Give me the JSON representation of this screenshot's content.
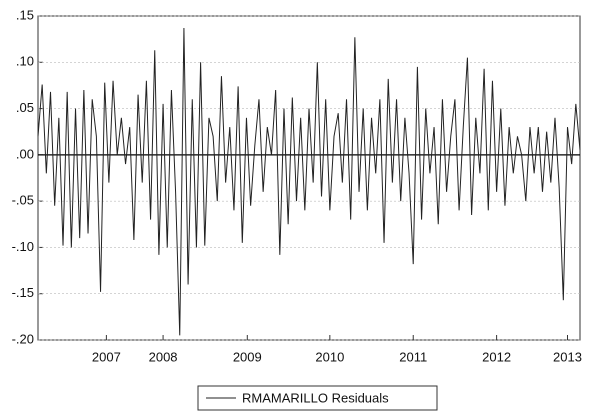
{
  "chart_data": {
    "type": "line",
    "x": [
      2006.55,
      2006.6,
      2006.65,
      2006.7,
      2006.75,
      2006.8,
      2006.85,
      2006.9,
      2006.95,
      2007.0,
      2007.05,
      2007.1,
      2007.15,
      2007.2,
      2007.25,
      2007.3,
      2007.35,
      2007.4,
      2007.45,
      2007.5,
      2007.55,
      2007.6,
      2007.65,
      2007.7,
      2007.75,
      2007.8,
      2007.85,
      2007.9,
      2007.95,
      2008.0,
      2008.05,
      2008.1,
      2008.15,
      2008.2,
      2008.25,
      2008.3,
      2008.35,
      2008.4,
      2008.45,
      2008.5,
      2008.55,
      2008.6,
      2008.65,
      2008.7,
      2008.75,
      2008.8,
      2008.85,
      2008.9,
      2008.95,
      2009.0,
      2009.05,
      2009.1,
      2009.15,
      2009.2,
      2009.25,
      2009.3,
      2009.35,
      2009.4,
      2009.45,
      2009.5,
      2009.55,
      2009.6,
      2009.65,
      2009.7,
      2009.75,
      2009.8,
      2009.85,
      2009.9,
      2009.95,
      2010.0,
      2010.05,
      2010.1,
      2010.15,
      2010.2,
      2010.25,
      2010.3,
      2010.35,
      2010.4,
      2010.45,
      2010.5,
      2010.55,
      2010.6,
      2010.65,
      2010.7,
      2010.75,
      2010.8,
      2010.85,
      2010.9,
      2010.95,
      2011.0,
      2011.05,
      2011.1,
      2011.15,
      2011.2,
      2011.25,
      2011.3,
      2011.35,
      2011.4,
      2011.45,
      2011.5,
      2011.55,
      2011.6,
      2011.65,
      2011.7,
      2011.75,
      2011.8,
      2011.85,
      2011.9,
      2011.95,
      2012.0,
      2012.05,
      2012.1,
      2012.15,
      2012.2,
      2012.25,
      2012.3,
      2012.35,
      2012.4,
      2012.45,
      2012.5,
      2012.55,
      2012.6,
      2012.65,
      2012.7,
      2012.75,
      2012.8,
      2012.85,
      2012.9,
      2012.95,
      2013.0,
      2013.05
    ],
    "series": [
      {
        "name": "RMAMARILLO Residuals",
        "color": "#222222",
        "values": [
          0.02,
          0.076,
          -0.02,
          0.068,
          -0.055,
          0.04,
          -0.098,
          0.068,
          -0.1,
          0.05,
          -0.09,
          0.07,
          -0.085,
          0.06,
          0.02,
          -0.148,
          0.078,
          -0.03,
          0.08,
          0.0,
          0.04,
          -0.01,
          0.03,
          -0.092,
          0.065,
          -0.03,
          0.08,
          -0.07,
          0.113,
          -0.108,
          0.055,
          -0.1,
          0.07,
          -0.04,
          -0.195,
          0.137,
          -0.14,
          0.06,
          -0.1,
          0.1,
          -0.098,
          0.04,
          0.02,
          -0.05,
          0.085,
          -0.03,
          0.03,
          -0.06,
          0.074,
          -0.095,
          0.04,
          -0.055,
          0.01,
          0.06,
          -0.04,
          0.03,
          0.0,
          0.07,
          -0.108,
          0.05,
          -0.075,
          0.062,
          -0.05,
          0.04,
          -0.06,
          0.05,
          -0.03,
          0.1,
          -0.045,
          0.06,
          -0.06,
          0.02,
          0.045,
          -0.03,
          0.06,
          -0.07,
          0.127,
          -0.04,
          0.05,
          -0.06,
          0.04,
          -0.02,
          0.06,
          -0.095,
          0.082,
          -0.03,
          0.06,
          -0.05,
          0.04,
          -0.02,
          -0.118,
          0.095,
          -0.07,
          0.05,
          -0.02,
          0.03,
          -0.075,
          0.06,
          -0.04,
          0.02,
          0.06,
          -0.06,
          0.03,
          0.105,
          -0.065,
          0.04,
          -0.02,
          0.093,
          -0.06,
          0.08,
          -0.04,
          0.05,
          -0.055,
          0.03,
          -0.02,
          0.02,
          0.0,
          -0.05,
          0.03,
          -0.02,
          0.03,
          -0.04,
          0.025,
          -0.03,
          0.04,
          -0.035,
          -0.157,
          0.03,
          -0.01,
          0.055,
          0.005
        ]
      }
    ],
    "xlim": [
      2006.55,
      2013.05
    ],
    "xticks": [
      {
        "value": 2007.37,
        "label": "2007"
      },
      {
        "value": 2008.05,
        "label": "2008"
      },
      {
        "value": 2009.06,
        "label": "2009"
      },
      {
        "value": 2010.05,
        "label": "2010"
      },
      {
        "value": 2011.05,
        "label": "2011"
      },
      {
        "value": 2012.05,
        "label": "2012"
      },
      {
        "value": 2012.9,
        "label": "2013"
      }
    ],
    "ylim": [
      -0.2,
      0.15
    ],
    "yticks": [
      {
        "value": -0.2,
        "label": "-.20"
      },
      {
        "value": -0.15,
        "label": "-.15"
      },
      {
        "value": -0.1,
        "label": "-.10"
      },
      {
        "value": -0.05,
        "label": "-.05"
      },
      {
        "value": 0,
        "label": ".00"
      },
      {
        "value": 0.05,
        "label": ".05"
      },
      {
        "value": 0.1,
        "label": ".10"
      },
      {
        "value": 0.15,
        "label": ".15"
      }
    ],
    "grid": true,
    "zero_line": true,
    "legend": "bottom"
  }
}
